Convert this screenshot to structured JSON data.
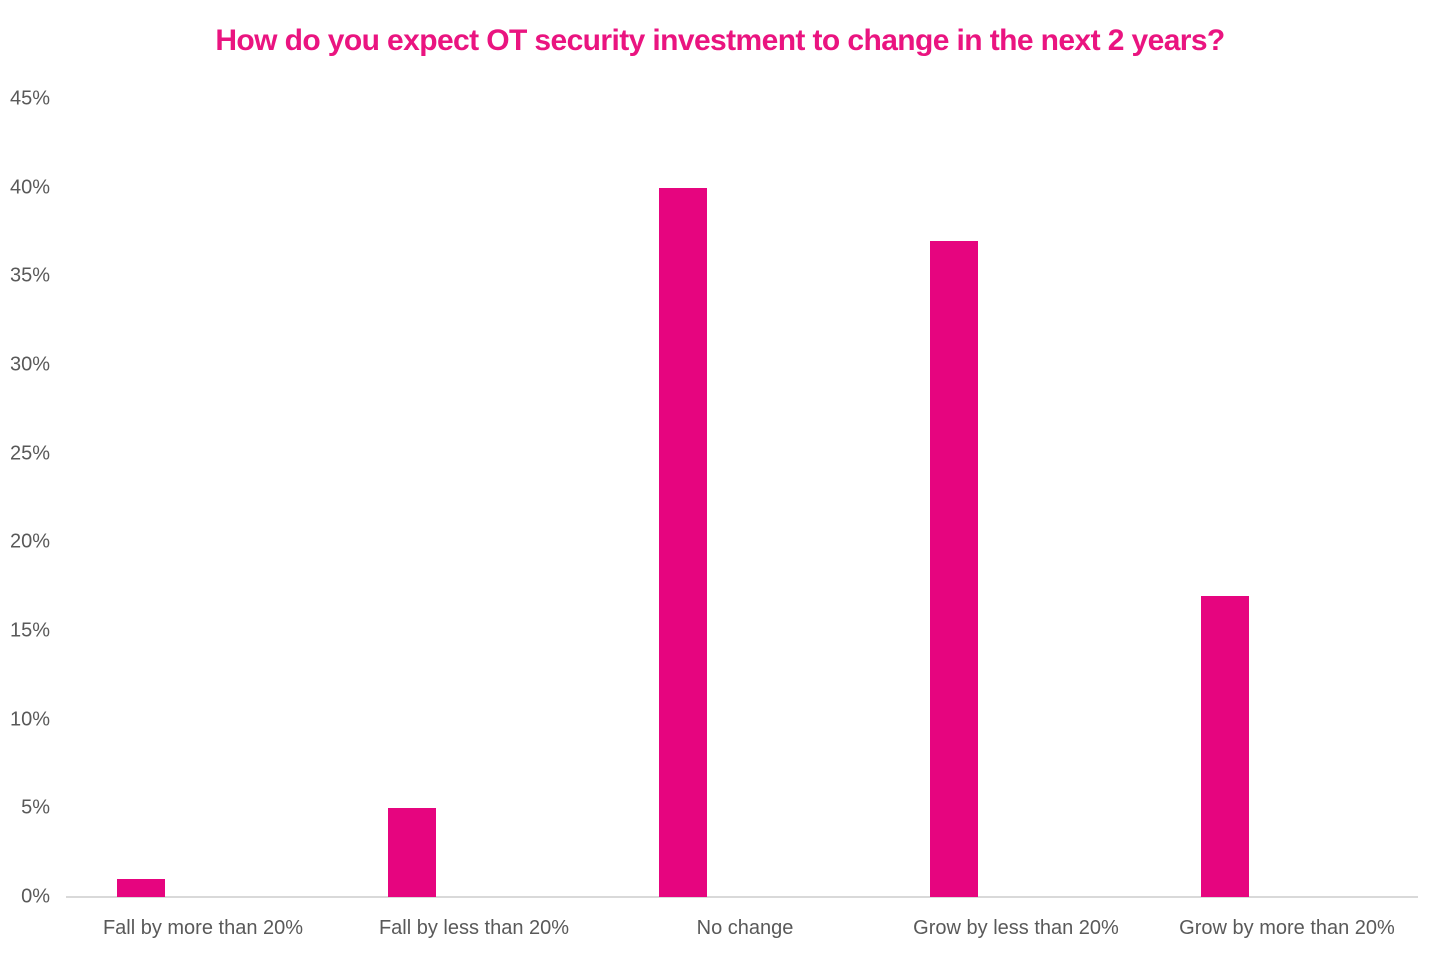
{
  "colors": {
    "bar": "#E6057F",
    "title": "#EA1480",
    "axis_text": "#595959",
    "axis_line": "#D9D9D9",
    "background": "#FFFFFF"
  },
  "chart_data": {
    "type": "bar",
    "title": "How do you expect OT security investment to change in the next 2 years?",
    "categories": [
      "Fall by more than 20%",
      "Fall by less than 20%",
      "No change",
      "Grow by less than 20%",
      "Grow by more than 20%"
    ],
    "values": [
      1,
      5,
      40,
      37,
      17
    ],
    "unit": "%",
    "xlabel": "",
    "ylabel": "",
    "ylim": [
      0,
      45
    ],
    "ytick_step": 5,
    "ytick_labels": [
      "0%",
      "5%",
      "10%",
      "15%",
      "20%",
      "25%",
      "30%",
      "35%",
      "40%",
      "45%"
    ],
    "grid": false,
    "legend": false,
    "bar_color": "#E6057F"
  }
}
